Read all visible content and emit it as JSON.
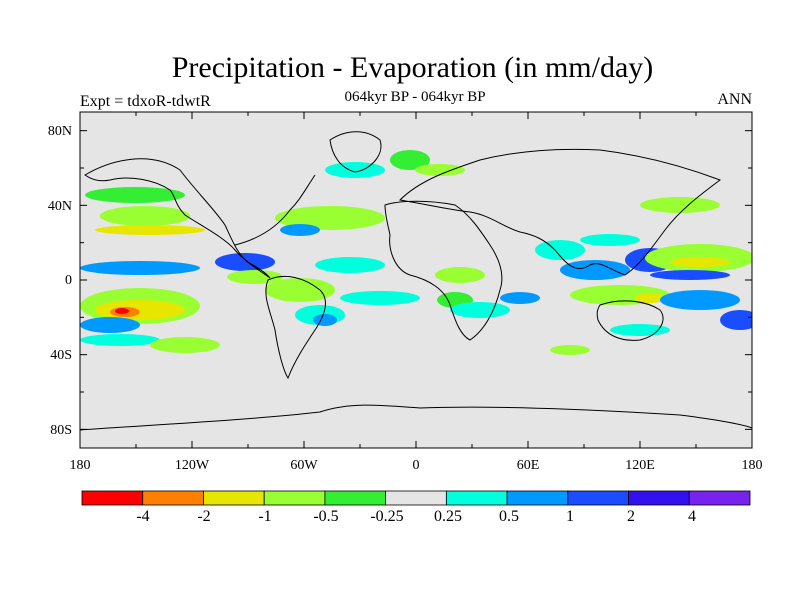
{
  "chart_data": {
    "type": "map-contour",
    "title": "Precipitation - Evaporation (in mm/day)",
    "subtitle": "064kyr BP - 064kyr BP",
    "left_string": "Expt = tdxoR-tdwtR",
    "right_string": "ANN",
    "lat_labels": [
      "80N",
      "40N",
      "0",
      "40S",
      "80S"
    ],
    "lat_values": [
      80,
      40,
      0,
      -40,
      -80
    ],
    "lon_labels": [
      "180",
      "120W",
      "60W",
      "0",
      "60E",
      "120E",
      "180"
    ],
    "lon_values": [
      -180,
      -120,
      -60,
      0,
      60,
      120,
      180
    ],
    "xlim": [
      -180,
      180
    ],
    "ylim": [
      -90,
      90
    ],
    "colorbar": {
      "labels": [
        "-4",
        "-2",
        "-1",
        "-0.5",
        "-0.25",
        "0.25",
        "0.5",
        "1",
        "2",
        "4"
      ],
      "colors": [
        "#ff0000",
        "#ff8000",
        "#e6e600",
        "#99ff33",
        "#33ee33",
        "#e5e5e5",
        "#00ffdd",
        "#0099ff",
        "#1a4dff",
        "#3311ee",
        "#7722ee"
      ]
    }
  }
}
